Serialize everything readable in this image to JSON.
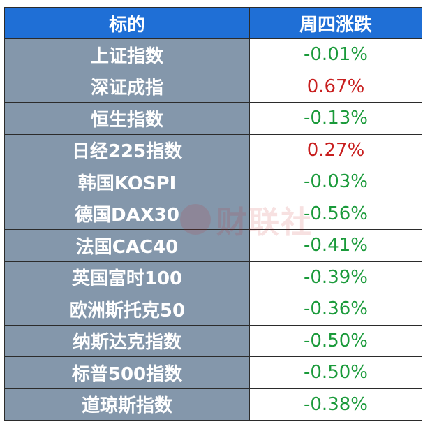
{
  "header": {
    "name": "标的",
    "change": "周四涨跌"
  },
  "rows": [
    {
      "name": "上证指数",
      "change": "-0.01%",
      "direction": "down"
    },
    {
      "name": "深证成指",
      "change": "0.67%",
      "direction": "up"
    },
    {
      "name": "恒生指数",
      "change": "-0.13%",
      "direction": "down"
    },
    {
      "name": "日经225指数",
      "change": "0.27%",
      "direction": "up"
    },
    {
      "name": "韩国KOSPI",
      "change": "-0.03%",
      "direction": "down"
    },
    {
      "name": "德国DAX30",
      "change": "-0.56%",
      "direction": "down"
    },
    {
      "name": "法国CAC40",
      "change": "-0.41%",
      "direction": "down"
    },
    {
      "name": "英国富时100",
      "change": "-0.39%",
      "direction": "down"
    },
    {
      "name": "欧洲斯托克50",
      "change": "-0.36%",
      "direction": "down"
    },
    {
      "name": "纳斯达克指数",
      "change": "-0.50%",
      "direction": "down"
    },
    {
      "name": "标普500指数",
      "change": "-0.50%",
      "direction": "down"
    },
    {
      "name": "道琼斯指数",
      "change": "-0.38%",
      "direction": "down"
    }
  ],
  "colors": {
    "header_bg": "#1f6fd6",
    "name_bg": "#8497ab",
    "up": "#c81e1e",
    "down": "#1a9a3a"
  },
  "watermark": {
    "text": "财联社"
  }
}
